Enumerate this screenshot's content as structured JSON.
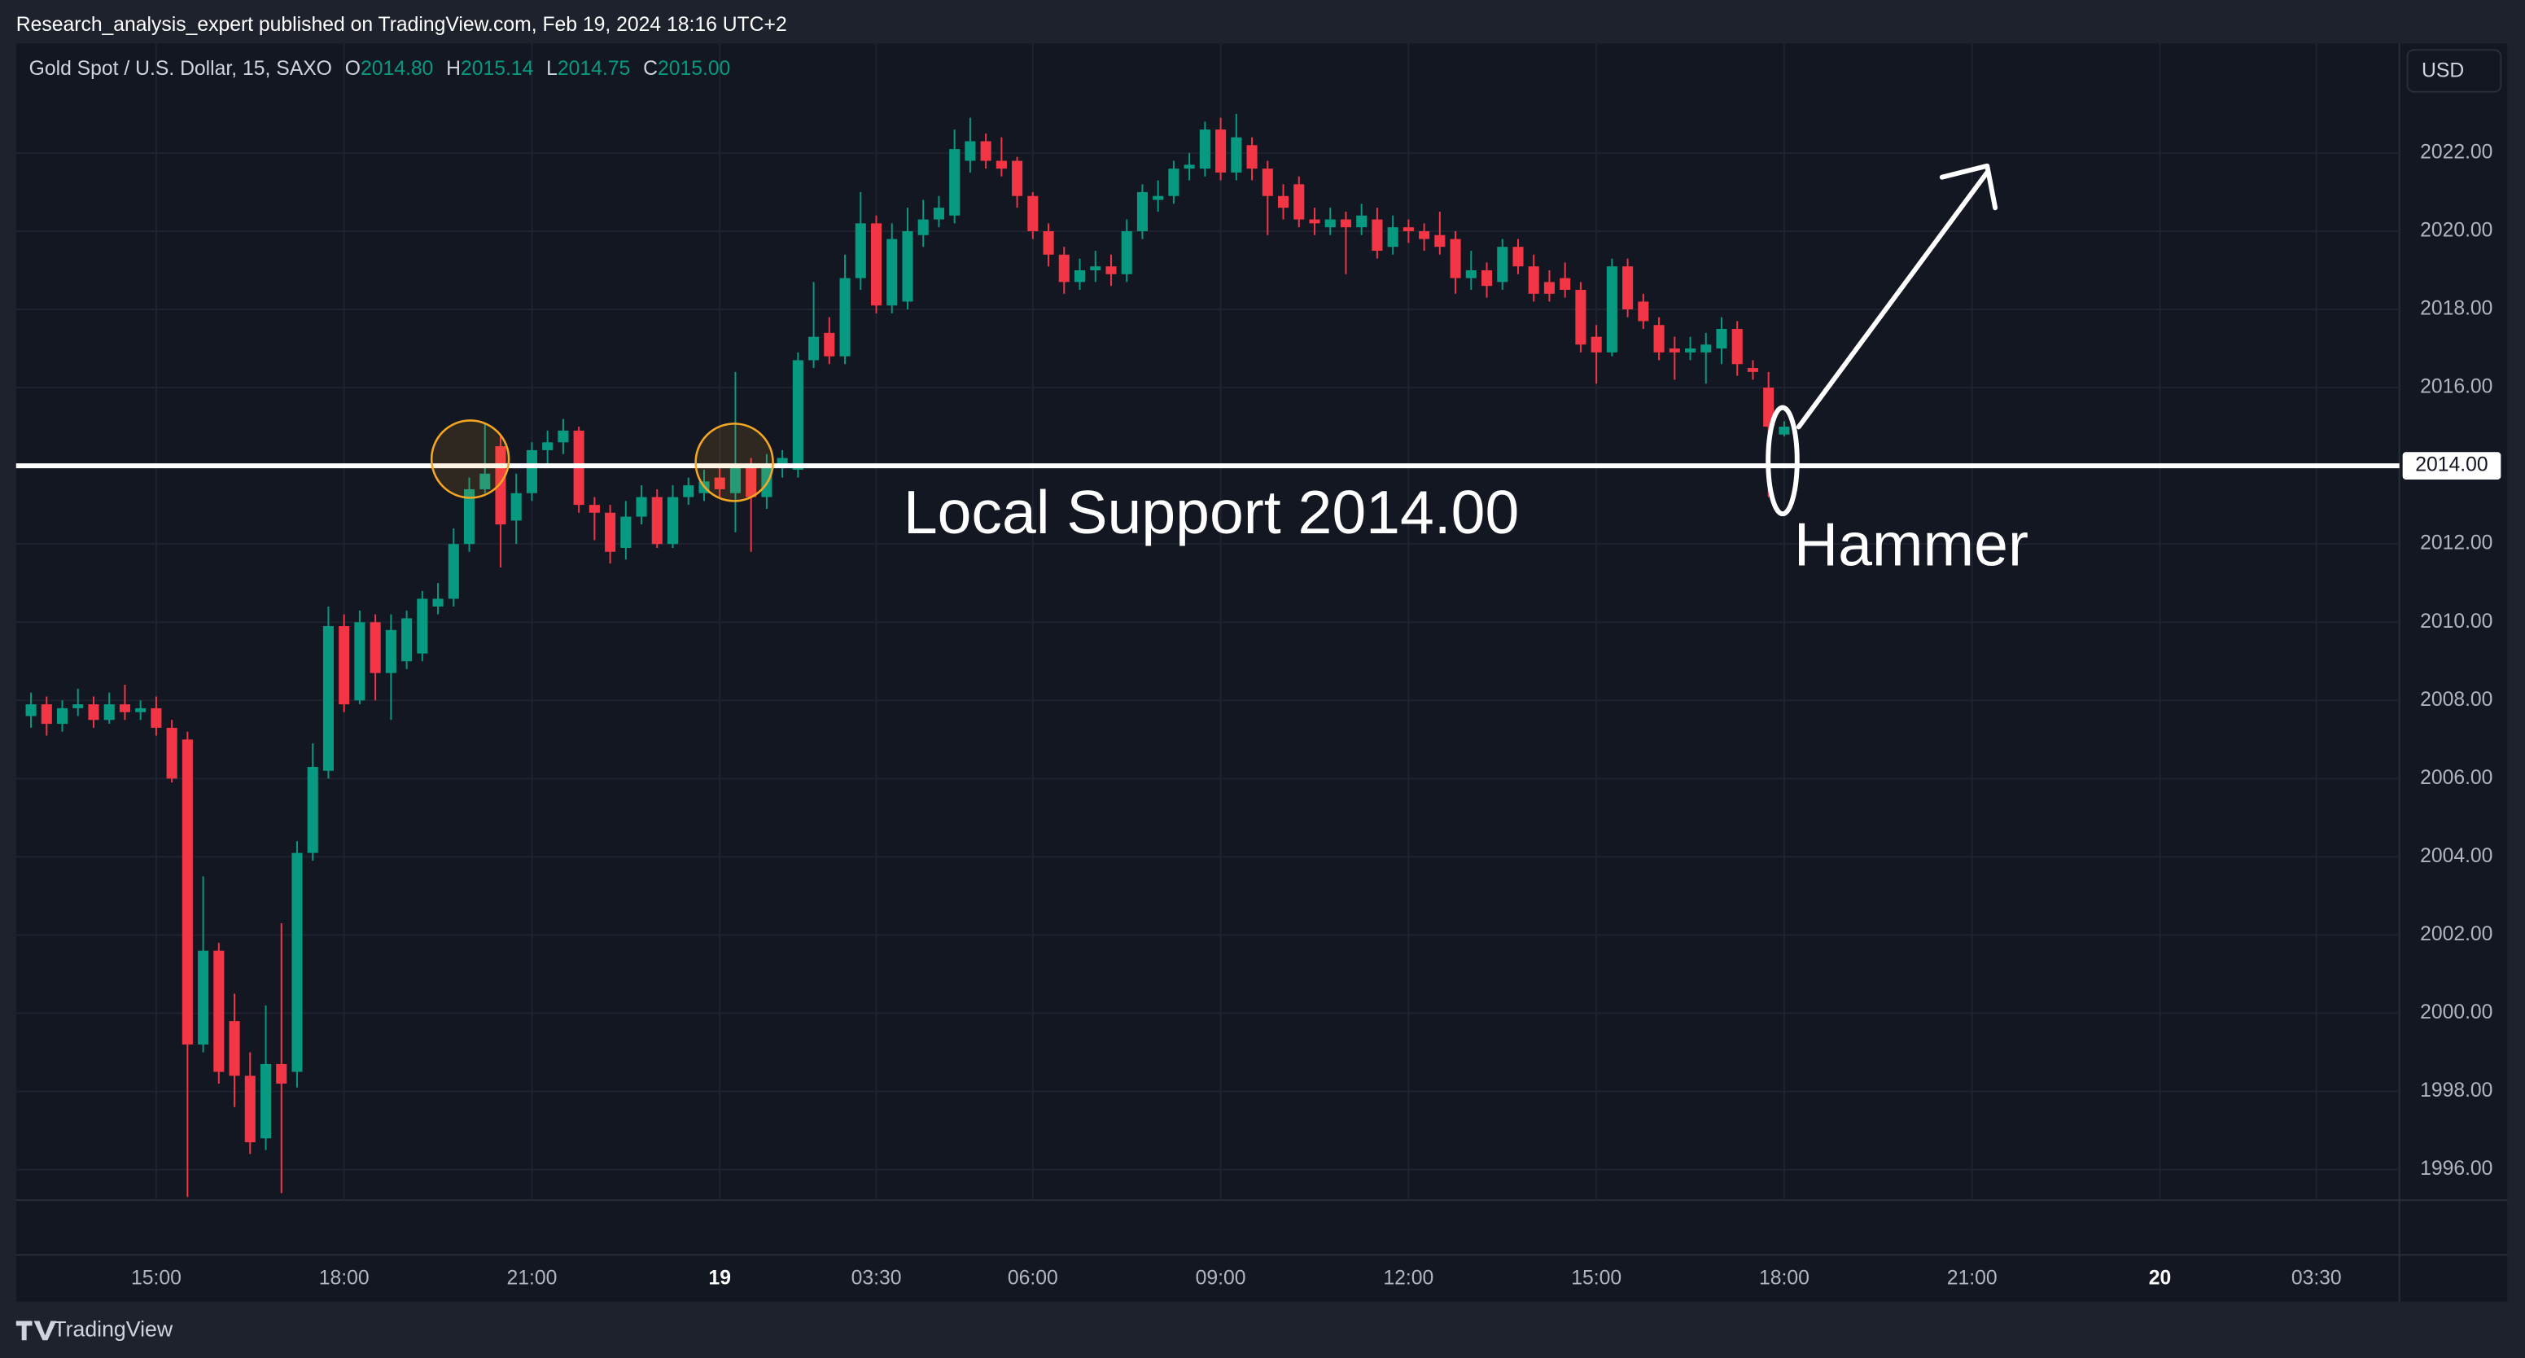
{
  "header": {
    "byline": "Research_analysis_expert published on TradingView.com, Feb 19, 2024 18:16 UTC+2"
  },
  "footer": {
    "brand": "TradingView"
  },
  "chart_data": {
    "type": "candlestick",
    "title": "Gold Spot / U.S. Dollar, 15, SAXO",
    "legend": {
      "o": "O",
      "open": "2014.80",
      "h": "H",
      "high": "2015.14",
      "l": "L",
      "low": "2014.75",
      "c": "C",
      "close": "2015.00"
    },
    "currency": "USD",
    "up_color": "#089981",
    "down_color": "#f23645",
    "grid": true,
    "xlim": [
      -0.95,
      151.3
    ],
    "xticks": [
      {
        "value": 8,
        "label": "15:00"
      },
      {
        "value": 20,
        "label": "18:00"
      },
      {
        "value": 32,
        "label": "21:00"
      },
      {
        "value": 44,
        "label": "19"
      },
      {
        "value": 54,
        "label": "03:30"
      },
      {
        "value": 64,
        "label": "06:00"
      },
      {
        "value": 76,
        "label": "09:00"
      },
      {
        "value": 88,
        "label": "12:00"
      },
      {
        "value": 100,
        "label": "15:00"
      },
      {
        "value": 112,
        "label": "18:00"
      },
      {
        "value": 124,
        "label": "21:00"
      },
      {
        "value": 136,
        "label": "20"
      },
      {
        "value": 146,
        "label": "03:30"
      }
    ],
    "ylim": [
      1995.22,
      2024.8
    ],
    "yticks": [
      {
        "value": 1996,
        "label": "1996.00"
      },
      {
        "value": 1998,
        "label": "1998.00"
      },
      {
        "value": 2000,
        "label": "2000.00"
      },
      {
        "value": 2002,
        "label": "2002.00"
      },
      {
        "value": 2004,
        "label": "2004.00"
      },
      {
        "value": 2006,
        "label": "2006.00"
      },
      {
        "value": 2008,
        "label": "2008.00"
      },
      {
        "value": 2010,
        "label": "2010.00"
      },
      {
        "value": 2012,
        "label": "2012.00"
      },
      {
        "value": 2014,
        "label": "2014.00"
      },
      {
        "value": 2016,
        "label": "2016.00"
      },
      {
        "value": 2018,
        "label": "2018.00"
      },
      {
        "value": 2020,
        "label": "2020.00"
      },
      {
        "value": 2022,
        "label": "2022.00"
      }
    ],
    "open": [
      2007.6,
      2007.9,
      2007.4,
      2007.8,
      2007.9,
      2007.5,
      2007.9,
      2007.7,
      2007.8,
      2007.3,
      2007.0,
      1999.2,
      2001.6,
      1999.8,
      1998.4,
      1996.8,
      1998.7,
      1998.5,
      2004.1,
      2006.2,
      2009.9,
      2008.0,
      2010.0,
      2008.7,
      2009.0,
      2009.2,
      2010.4,
      2010.6,
      2012.0,
      2013.4,
      2014.5,
      2012.6,
      2013.3,
      2014.4,
      2014.6,
      2014.9,
      2013.0,
      2012.8,
      2011.9,
      2012.7,
      2013.2,
      2012.0,
      2013.2,
      2013.3,
      2013.7,
      2013.3,
      2014.0,
      2013.2,
      2014.0,
      2013.9,
      2016.7,
      2017.4,
      2016.8,
      2018.8,
      2020.2,
      2018.1,
      2018.2,
      2019.9,
      2020.3,
      2020.4,
      2021.8,
      2022.3,
      2021.8,
      2021.8,
      2020.9,
      2020.0,
      2019.4,
      2018.7,
      2019.0,
      2019.1,
      2018.9,
      2020.0,
      2020.8,
      2020.9,
      2021.6,
      2021.6,
      2022.6,
      2021.5,
      2022.2,
      2021.6,
      2020.9,
      2021.2,
      2020.3,
      2020.1,
      2020.3,
      2020.1,
      2020.3,
      2019.6,
      2020.1,
      2020.0,
      2019.9,
      2019.8,
      2018.8,
      2019.0,
      2018.7,
      2019.6,
      2019.1,
      2018.7,
      2018.8,
      2018.5,
      2017.3,
      2016.9,
      2019.1,
      2018.2,
      2017.6,
      2017.0,
      2016.9,
      2016.9,
      2017.0,
      2017.5,
      2016.5,
      2016.0,
      2014.8
    ],
    "high": [
      2008.2,
      2008.1,
      2008.0,
      2008.3,
      2008.1,
      2008.2,
      2008.4,
      2008.0,
      2008.1,
      2007.5,
      2007.2,
      2003.5,
      2001.8,
      2000.5,
      1999.0,
      2000.2,
      2002.3,
      2004.4,
      2006.9,
      2010.4,
      2010.2,
      2010.3,
      2010.2,
      2010.2,
      2010.3,
      2010.8,
      2011.0,
      2012.4,
      2013.7,
      2015.1,
      2014.8,
      2013.8,
      2014.6,
      2014.9,
      2015.2,
      2015.0,
      2013.2,
      2013.0,
      2013.1,
      2013.5,
      2013.4,
      2013.5,
      2013.7,
      2013.9,
      2014.0,
      2016.4,
      2014.2,
      2014.3,
      2014.4,
      2016.9,
      2018.7,
      2017.8,
      2019.4,
      2021.0,
      2020.4,
      2020.2,
      2020.6,
      2020.8,
      2020.9,
      2022.6,
      2022.9,
      2022.5,
      2022.4,
      2021.9,
      2021.0,
      2020.2,
      2019.6,
      2019.3,
      2019.5,
      2019.4,
      2020.3,
      2021.2,
      2021.3,
      2021.8,
      2022.0,
      2022.8,
      2022.9,
      2023.0,
      2022.4,
      2021.8,
      2021.2,
      2021.4,
      2020.6,
      2020.6,
      2020.5,
      2020.7,
      2020.6,
      2020.4,
      2020.3,
      2020.2,
      2020.5,
      2020.0,
      2019.5,
      2019.2,
      2019.8,
      2019.8,
      2019.4,
      2019.0,
      2019.2,
      2018.7,
      2017.6,
      2019.3,
      2019.3,
      2018.4,
      2017.8,
      2017.3,
      2017.3,
      2017.4,
      2017.8,
      2017.7,
      2016.7,
      2016.4,
      2015.14
    ],
    "low": [
      2007.3,
      2007.1,
      2007.2,
      2007.6,
      2007.3,
      2007.4,
      2007.5,
      2007.5,
      2007.1,
      2005.9,
      1995.3,
      1999.0,
      1998.2,
      1997.6,
      1996.4,
      1996.5,
      1995.4,
      1998.1,
      2003.9,
      2006.0,
      2007.7,
      2007.9,
      2008.0,
      2007.5,
      2008.8,
      2009.0,
      2010.2,
      2010.4,
      2011.8,
      2013.3,
      2011.4,
      2012.0,
      2013.1,
      2014.0,
      2014.3,
      2012.8,
      2012.1,
      2011.5,
      2011.6,
      2012.5,
      2011.9,
      2011.9,
      2013.0,
      2013.1,
      2013.2,
      2012.3,
      2011.8,
      2012.9,
      2013.7,
      2013.7,
      2016.5,
      2016.6,
      2016.6,
      2018.5,
      2017.9,
      2017.9,
      2018.0,
      2019.6,
      2020.1,
      2020.2,
      2021.5,
      2021.6,
      2021.4,
      2020.6,
      2019.8,
      2019.1,
      2018.4,
      2018.5,
      2018.7,
      2018.6,
      2018.7,
      2019.8,
      2020.5,
      2020.7,
      2021.3,
      2021.4,
      2021.3,
      2021.3,
      2021.3,
      2019.9,
      2020.3,
      2020.1,
      2019.9,
      2019.9,
      2018.9,
      2019.9,
      2019.3,
      2019.4,
      2019.7,
      2019.5,
      2019.4,
      2018.4,
      2018.5,
      2018.3,
      2018.5,
      2018.9,
      2018.2,
      2018.2,
      2018.3,
      2016.9,
      2016.1,
      2016.8,
      2017.8,
      2017.5,
      2016.7,
      2016.2,
      2016.7,
      2016.1,
      2016.6,
      2016.3,
      2016.2,
      2013.2,
      2014.75
    ],
    "close": [
      2007.9,
      2007.4,
      2007.8,
      2007.9,
      2007.5,
      2007.9,
      2007.7,
      2007.8,
      2007.3,
      2006.0,
      1999.2,
      2001.6,
      1998.5,
      1998.4,
      1996.7,
      1998.7,
      1998.2,
      2004.1,
      2006.3,
      2009.9,
      2007.9,
      2010.0,
      2008.7,
      2009.8,
      2010.1,
      2010.6,
      2010.6,
      2012.0,
      2013.4,
      2013.8,
      2012.5,
      2013.3,
      2014.4,
      2014.6,
      2014.9,
      2013.0,
      2012.8,
      2011.8,
      2012.7,
      2013.2,
      2012.0,
      2013.2,
      2013.5,
      2013.6,
      2013.4,
      2014.0,
      2013.2,
      2014.0,
      2014.2,
      2016.7,
      2017.3,
      2016.8,
      2018.8,
      2020.2,
      2018.1,
      2019.8,
      2020.0,
      2020.3,
      2020.6,
      2022.1,
      2022.3,
      2021.8,
      2021.6,
      2020.9,
      2020.0,
      2019.4,
      2018.7,
      2019.0,
      2019.1,
      2018.9,
      2020.0,
      2021.0,
      2020.9,
      2021.6,
      2021.7,
      2022.6,
      2021.5,
      2022.4,
      2021.6,
      2020.9,
      2020.6,
      2020.3,
      2020.2,
      2020.3,
      2020.1,
      2020.4,
      2019.5,
      2020.1,
      2020.0,
      2019.8,
      2019.6,
      2018.8,
      2019.0,
      2018.6,
      2019.6,
      2019.1,
      2018.4,
      2018.4,
      2018.5,
      2017.1,
      2016.9,
      2019.1,
      2018.0,
      2017.7,
      2016.9,
      2016.9,
      2017.0,
      2017.1,
      2017.5,
      2016.6,
      2016.4,
      2015.0,
      2015.0
    ],
    "support": {
      "value": 2014,
      "label": "2014.00"
    },
    "annotations": [
      "Local Support 2014.00",
      "Hammer"
    ]
  }
}
